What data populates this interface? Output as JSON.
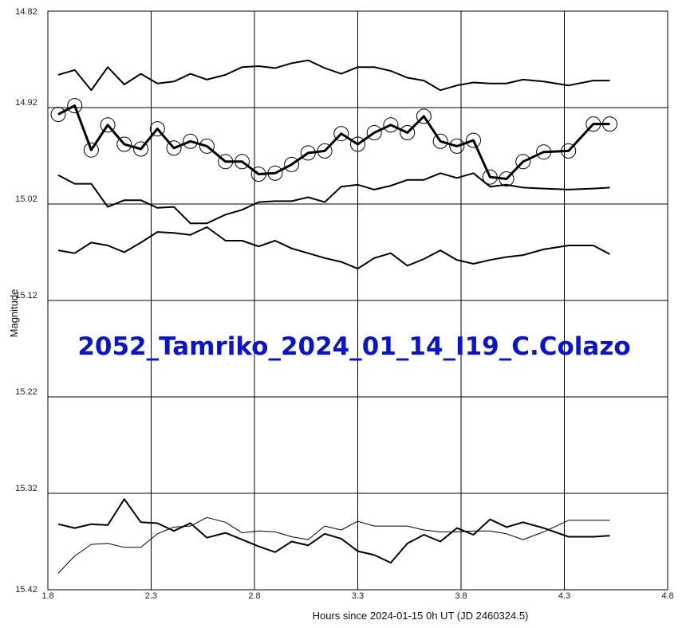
{
  "chart_data": {
    "type": "line",
    "title": "2052_Tamriko_2024_01_14_I19_C.Colazo",
    "title_color": "#0a14d0",
    "xlabel": "Hours since 2024-01-15 0h UT (JD 2460324.5)",
    "ylabel": "Magnitude",
    "xlim": [
      1.8,
      4.8
    ],
    "ylim": [
      14.82,
      15.42
    ],
    "y_inverted": true,
    "grid": true,
    "x_ticks": [
      "1.8",
      "2.3",
      "2.8",
      "3.3",
      "3.8",
      "4.3",
      "4.8"
    ],
    "y_ticks": [
      "14.82",
      "14.92",
      "15.02",
      "15.12",
      "15.22",
      "15.32",
      "15.42"
    ],
    "x": [
      1.85,
      1.93,
      2.01,
      2.09,
      2.17,
      2.25,
      2.33,
      2.41,
      2.49,
      2.57,
      2.66,
      2.74,
      2.82,
      2.9,
      2.98,
      3.06,
      3.14,
      3.22,
      3.3,
      3.38,
      3.46,
      3.54,
      3.62,
      3.7,
      3.78,
      3.86,
      3.94,
      4.02,
      4.1,
      4.2,
      4.32,
      4.44,
      4.52
    ],
    "series": [
      {
        "style": "target",
        "values": [
          14.927,
          14.918,
          14.964,
          14.938,
          14.958,
          14.963,
          14.942,
          14.962,
          14.955,
          14.96,
          14.976,
          14.976,
          14.989,
          14.988,
          14.979,
          14.967,
          14.965,
          14.947,
          14.958,
          14.946,
          14.938,
          14.946,
          14.929,
          14.955,
          14.96,
          14.954,
          14.992,
          14.994,
          14.976,
          14.966,
          14.965,
          14.937,
          14.937
        ]
      },
      {
        "style": "thin",
        "values": [
          14.886,
          14.881,
          14.902,
          14.878,
          14.896,
          14.885,
          14.895,
          14.893,
          14.885,
          14.891,
          14.886,
          14.878,
          14.877,
          14.879,
          14.874,
          14.871,
          14.879,
          14.885,
          14.878,
          14.878,
          14.882,
          14.889,
          14.892,
          14.902,
          14.897,
          14.894,
          14.895,
          14.895,
          14.891,
          14.893,
          14.897,
          14.892,
          14.892
        ]
      },
      {
        "style": "thin",
        "values": [
          14.99,
          14.999,
          14.999,
          15.023,
          15.016,
          15.016,
          15.024,
          15.023,
          15.04,
          15.04,
          15.031,
          15.026,
          15.018,
          15.017,
          15.017,
          15.013,
          15.018,
          15.002,
          15.0,
          15.005,
          15.001,
          14.995,
          14.995,
          14.988,
          14.993,
          14.988,
          15.002,
          15.0,
          15.003,
          15.004,
          15.005,
          15.004,
          15.003
        ]
      },
      {
        "style": "thin",
        "values": [
          15.068,
          15.071,
          15.06,
          15.063,
          15.07,
          15.06,
          15.049,
          15.05,
          15.052,
          15.044,
          15.058,
          15.058,
          15.064,
          15.058,
          15.066,
          15.071,
          15.076,
          15.08,
          15.087,
          15.076,
          15.071,
          15.084,
          15.077,
          15.068,
          15.078,
          15.082,
          15.078,
          15.075,
          15.073,
          15.067,
          15.063,
          15.063,
          15.072
        ]
      },
      {
        "style": "thin",
        "values": [
          15.352,
          15.356,
          15.352,
          15.353,
          15.326,
          15.35,
          15.351,
          15.359,
          15.351,
          15.366,
          15.361,
          15.368,
          15.375,
          15.381,
          15.37,
          15.374,
          15.362,
          15.367,
          15.38,
          15.384,
          15.392,
          15.372,
          15.363,
          15.37,
          15.356,
          15.363,
          15.347,
          15.355,
          15.35,
          15.356,
          15.365,
          15.365,
          15.364
        ]
      },
      {
        "style": "dotted",
        "values": [
          15.403,
          15.385,
          15.373,
          15.372,
          15.376,
          15.376,
          15.362,
          15.355,
          15.354,
          15.345,
          15.35,
          15.361,
          15.359,
          15.36,
          15.365,
          15.368,
          15.354,
          15.358,
          15.349,
          15.354,
          15.354,
          15.354,
          15.358,
          15.36,
          15.36,
          15.359,
          15.359,
          15.362,
          15.368,
          15.36,
          15.348,
          15.348,
          15.348
        ]
      }
    ]
  }
}
